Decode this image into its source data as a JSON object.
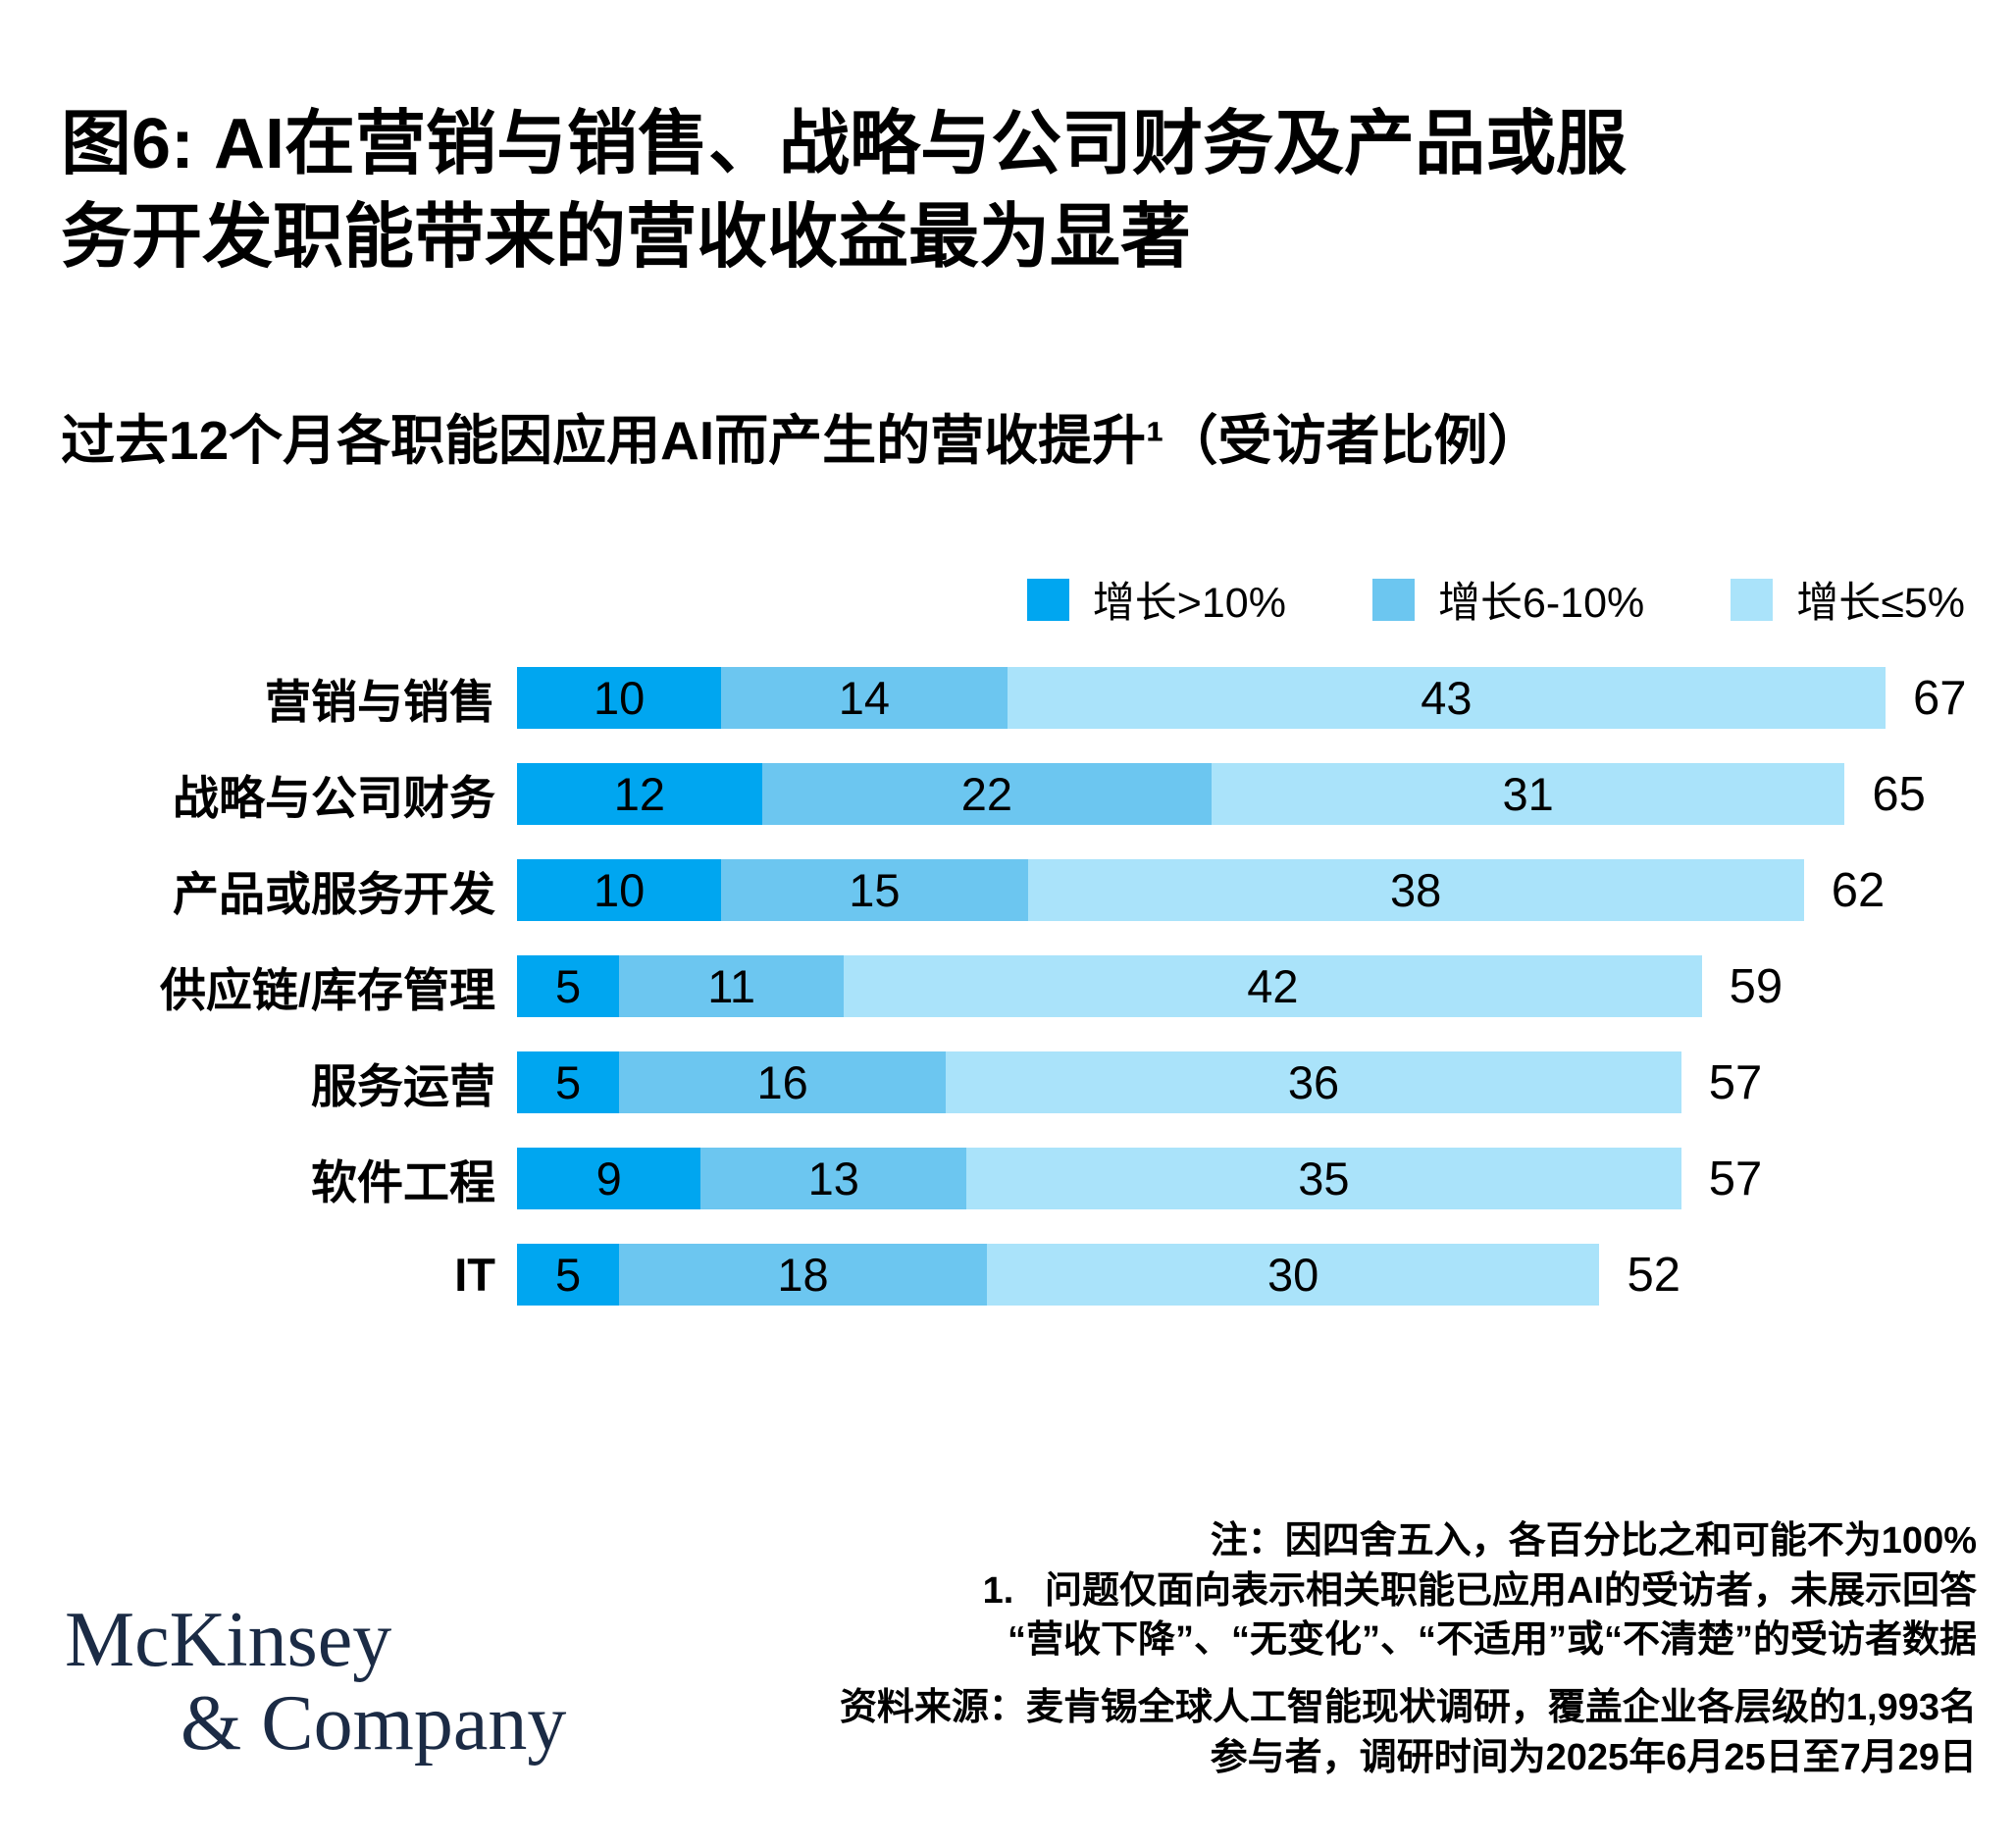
{
  "title": {
    "lines": [
      "图6: AI在营销与销售、战略与公司财务及产品或服",
      "务开发职能带来的营收收益最为显著"
    ]
  },
  "subtitle": "过去12个月各职能因应用AI而产生的营收提升¹（受访者比例）",
  "legend": [
    {
      "label": "增长>10%",
      "color": "#00a6f0"
    },
    {
      "label": "增长6-10%",
      "color": "#6cc6f0"
    },
    {
      "label": "增长≤5%",
      "color": "#aae3fa"
    }
  ],
  "chart_data": {
    "type": "bar",
    "orientation": "horizontal",
    "stacked": true,
    "grid": false,
    "legend_position": "top-right",
    "xlim": [
      0,
      67
    ],
    "categories": [
      "营销与销售",
      "战略与公司财务",
      "产品或服务开发",
      "供应链/库存管理",
      "服务运营",
      "软件工程",
      "IT"
    ],
    "series": [
      {
        "name": "增长>10%",
        "color": "#00a6f0",
        "values": [
          10,
          12,
          10,
          5,
          5,
          9,
          5
        ]
      },
      {
        "name": "增长6-10%",
        "color": "#6cc6f0",
        "values": [
          14,
          22,
          15,
          11,
          16,
          13,
          18
        ]
      },
      {
        "name": "增长≤5%",
        "color": "#aae3fa",
        "values": [
          43,
          31,
          38,
          42,
          36,
          35,
          30
        ]
      }
    ],
    "totals": [
      67,
      65,
      62,
      59,
      57,
      57,
      52
    ]
  },
  "notes": {
    "lines": [
      "注：因四舍五入，各百分比之和可能不为100%",
      "1.   问题仅面向表示相关职能已应用AI的受访者，未展示回答",
      "“营收下降”、“无变化”、“不适用”或“不清楚”的受访者数据"
    ]
  },
  "source": {
    "lines": [
      "资料来源：麦肯锡全球人工智能现状调研，覆盖企业各层级的1,993名",
      "参与者，调研时间为2025年6月25日至7月29日"
    ]
  },
  "logo": {
    "line1": "McKinsey",
    "line2": "& Company",
    "color": "#1b2b45"
  }
}
